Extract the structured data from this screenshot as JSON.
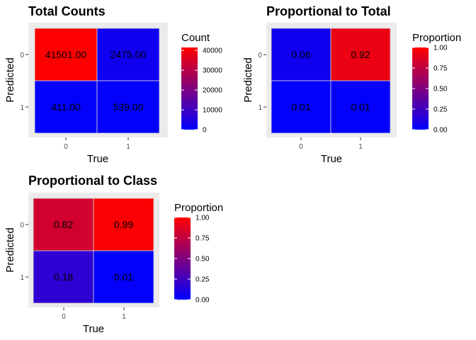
{
  "chart_data": [
    {
      "type": "heatmap",
      "title": "Total Counts",
      "xlabel": "True",
      "ylabel": "Predicted",
      "x_categories": [
        "0",
        "1"
      ],
      "y_categories": [
        "0",
        "1"
      ],
      "cells": [
        {
          "x": "0",
          "y": "0",
          "value": 41501,
          "label": "41501.00"
        },
        {
          "x": "1",
          "y": "0",
          "value": 2475,
          "label": "2475.00"
        },
        {
          "x": "0",
          "y": "1",
          "value": 411,
          "label": "411.00"
        },
        {
          "x": "1",
          "y": "1",
          "value": 539,
          "label": "539.00"
        }
      ],
      "legend": {
        "title": "Count",
        "min": 0,
        "max": 41501,
        "breaks": [
          0,
          10000,
          20000,
          30000,
          40000
        ],
        "break_labels": [
          "0",
          "10000",
          "20000",
          "30000",
          "40000"
        ]
      },
      "colors": {
        "low": "#0000ff",
        "high": "#ff0000"
      }
    },
    {
      "type": "heatmap",
      "title": "Proportional to Total",
      "xlabel": "True",
      "ylabel": "Predicted",
      "x_categories": [
        "0",
        "1"
      ],
      "y_categories": [
        "0",
        "1"
      ],
      "cells": [
        {
          "x": "0",
          "y": "0",
          "value": 0.06,
          "label": "0.06"
        },
        {
          "x": "1",
          "y": "0",
          "value": 0.92,
          "label": "0.92"
        },
        {
          "x": "0",
          "y": "1",
          "value": 0.01,
          "label": "0.01"
        },
        {
          "x": "1",
          "y": "1",
          "value": 0.01,
          "label": "0.01"
        }
      ],
      "legend": {
        "title": "Proportion",
        "min": 0,
        "max": 1,
        "breaks": [
          0,
          0.25,
          0.5,
          0.75,
          1
        ],
        "break_labels": [
          "0.00",
          "0.25",
          "0.50",
          "0.75",
          "1.00"
        ]
      },
      "colors": {
        "low": "#0000ff",
        "high": "#ff0000"
      }
    },
    {
      "type": "heatmap",
      "title": "Proportional to Class",
      "xlabel": "True",
      "ylabel": "Predicted",
      "x_categories": [
        "0",
        "1"
      ],
      "y_categories": [
        "0",
        "1"
      ],
      "cells": [
        {
          "x": "0",
          "y": "0",
          "value": 0.82,
          "label": "0.82"
        },
        {
          "x": "1",
          "y": "0",
          "value": 0.99,
          "label": "0.99"
        },
        {
          "x": "0",
          "y": "1",
          "value": 0.18,
          "label": "0.18"
        },
        {
          "x": "1",
          "y": "1",
          "value": 0.01,
          "label": "0.01"
        }
      ],
      "legend": {
        "title": "Proportion",
        "min": 0,
        "max": 1,
        "breaks": [
          0,
          0.25,
          0.5,
          0.75,
          1
        ],
        "break_labels": [
          "0.00",
          "0.25",
          "0.50",
          "0.75",
          "1.00"
        ]
      },
      "colors": {
        "low": "#0000ff",
        "high": "#ff0000"
      }
    }
  ]
}
